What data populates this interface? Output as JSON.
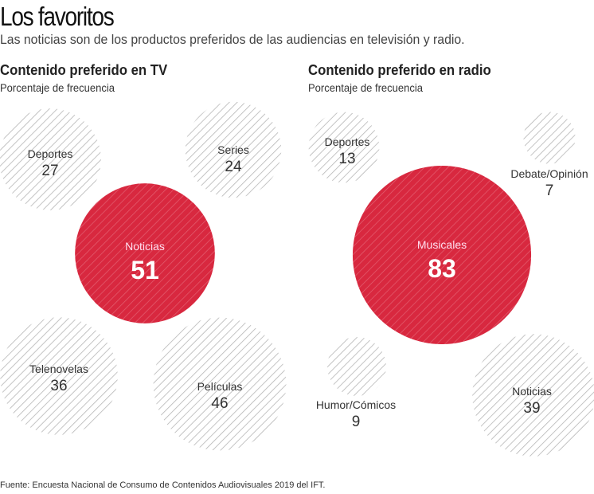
{
  "title": "Los favoritos",
  "subtitle": "Las noticias son de los productos preferidos de las audiencias en televisión y radio.",
  "source": "Fuente: Encuesta Nacional de Consumo de Contenidos Audiovisuales 2019 del IFT.",
  "colors": {
    "highlight": "#d8283f",
    "hatch": "#b5b5b5"
  },
  "chart_data": [
    {
      "type": "bubble",
      "title": "Contenido preferido en TV",
      "subtitle": "Porcentaje de frecuencia",
      "unit": "%",
      "categories": [
        "Deportes",
        "Series",
        "Noticias",
        "Telenovelas",
        "Películas"
      ],
      "values": [
        27,
        24,
        51,
        36,
        46
      ],
      "highlight": "Noticias"
    },
    {
      "type": "bubble",
      "title": "Contenido preferido en radio",
      "subtitle": "Porcentaje de frecuencia",
      "unit": "%",
      "categories": [
        "Deportes",
        "Debate/Opinión",
        "Musicales",
        "Humor/Cómicos",
        "Noticias"
      ],
      "values": [
        13,
        7,
        83,
        9,
        39
      ],
      "highlight": "Musicales"
    }
  ]
}
